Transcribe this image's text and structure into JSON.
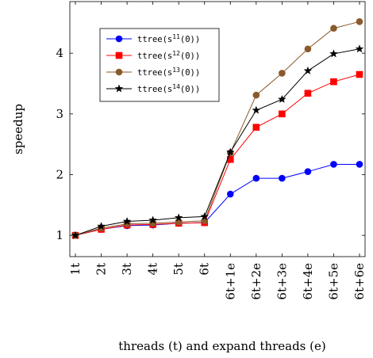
{
  "chart_data": {
    "type": "line",
    "categories": [
      "1t",
      "2t",
      "3t",
      "4t",
      "5t",
      "6t",
      "6t+1e",
      "6t+2e",
      "6t+3e",
      "6t+4e",
      "6t+5e",
      "6t+6e"
    ],
    "xlabel": "threads (t) and expand threads (e)",
    "ylabel": "speedup",
    "ylim": [
      0.65,
      4.85
    ],
    "yticks": [
      1,
      2,
      3,
      4
    ],
    "grid": false,
    "legend_position": "top-left",
    "series": [
      {
        "name": "ttree(s11(0))",
        "legend": {
          "base": "ttree(s",
          "sup": "11",
          "tail": "(0))"
        },
        "color": "#0000ff",
        "marker": "circle",
        "values": [
          1.0,
          1.1,
          1.16,
          1.17,
          1.2,
          1.21,
          1.68,
          1.94,
          1.94,
          2.05,
          2.17,
          2.17
        ]
      },
      {
        "name": "ttree(s12(0))",
        "legend": {
          "base": "ttree(s",
          "sup": "12",
          "tail": "(0))"
        },
        "color": "#ff0000",
        "marker": "square",
        "values": [
          1.0,
          1.1,
          1.17,
          1.18,
          1.2,
          1.21,
          2.25,
          2.78,
          3.0,
          3.34,
          3.53,
          3.65
        ]
      },
      {
        "name": "ttree(s13(0))",
        "legend": {
          "base": "ttree(s",
          "sup": "13",
          "tail": "(0))"
        },
        "color": "#8b5a2b",
        "marker": "circle",
        "values": [
          1.0,
          1.12,
          1.19,
          1.2,
          1.22,
          1.24,
          2.36,
          3.31,
          3.67,
          4.07,
          4.41,
          4.52
        ]
      },
      {
        "name": "ttree(s14(0))",
        "legend": {
          "base": "ttree(s",
          "sup": "14",
          "tail": "(0))"
        },
        "color": "#000000",
        "marker": "star",
        "values": [
          1.0,
          1.15,
          1.23,
          1.25,
          1.29,
          1.31,
          2.37,
          3.06,
          3.24,
          3.71,
          3.99,
          4.07
        ]
      }
    ]
  }
}
